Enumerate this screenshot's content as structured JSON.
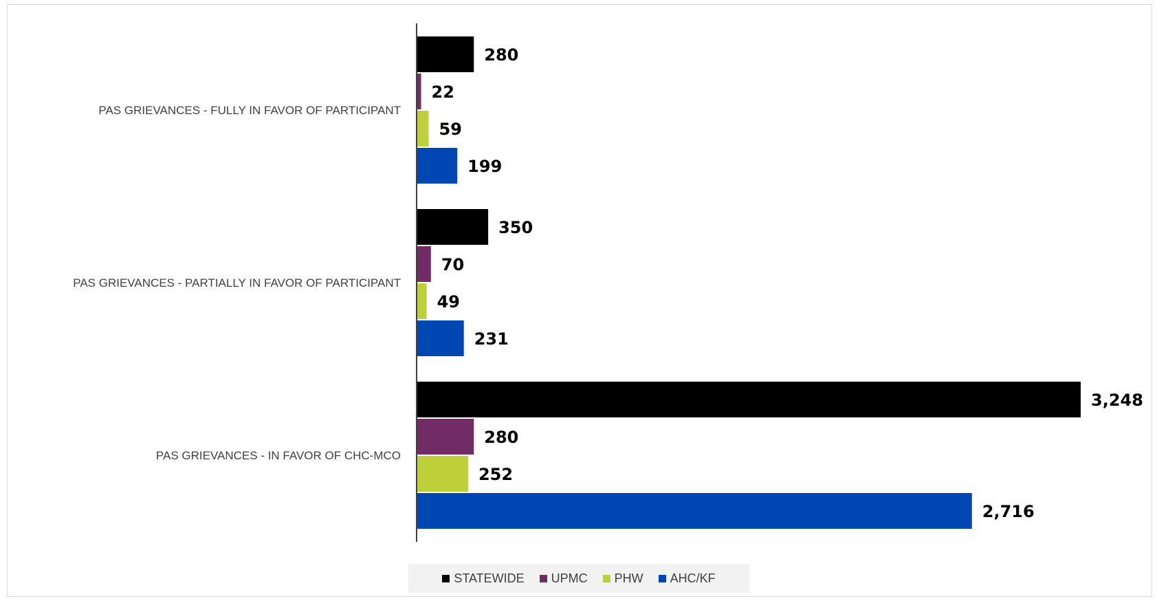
{
  "chart_data": {
    "type": "bar",
    "orientation": "horizontal",
    "categories": [
      "PAS GRIEVANCES - FULLY IN FAVOR OF PARTICIPANT",
      "PAS GRIEVANCES - PARTIALLY IN FAVOR OF PARTICIPANT",
      "PAS GRIEVANCES - IN FAVOR OF CHC-MCO"
    ],
    "series": [
      {
        "name": "STATEWIDE",
        "color": "#000000",
        "values": [
          280,
          350,
          3248
        ],
        "labels": [
          "280",
          "350",
          "3,248"
        ]
      },
      {
        "name": "UPMC",
        "color": "#722c65",
        "values": [
          22,
          70,
          280
        ],
        "labels": [
          "22",
          "70",
          "280"
        ]
      },
      {
        "name": "PHW",
        "color": "#bdd03a",
        "values": [
          59,
          49,
          252
        ],
        "labels": [
          "59",
          "49",
          "252"
        ]
      },
      {
        "name": "AHC/KF",
        "color": "#0047b3",
        "values": [
          199,
          231,
          2716
        ],
        "labels": [
          "199",
          "231",
          "2,716"
        ]
      }
    ],
    "title": "",
    "xlabel": "",
    "ylabel": "",
    "xlim": [
      0,
      3248
    ],
    "grid": false,
    "legend_position": "bottom",
    "data_labels": true
  },
  "legend": {
    "items": [
      {
        "label": "STATEWIDE",
        "color": "#000000"
      },
      {
        "label": "UPMC",
        "color": "#722c65"
      },
      {
        "label": "PHW",
        "color": "#bdd03a"
      },
      {
        "label": "AHC/KF",
        "color": "#0047b3"
      }
    ]
  }
}
